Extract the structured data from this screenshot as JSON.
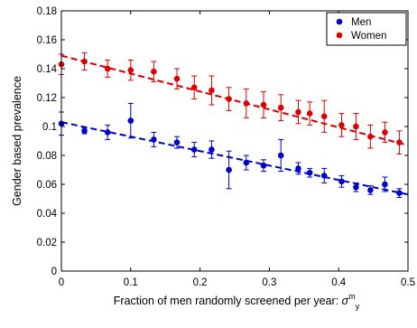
{
  "chart_data": {
    "type": "scatter",
    "title": "",
    "xlabel": {
      "text": "Fraction of men randomly screened per year: ",
      "symbol": "σ",
      "symbol_sup": "m",
      "symbol_sub": "y"
    },
    "ylabel": "Gender based prevalence",
    "xlim": [
      0,
      0.5
    ],
    "ylim": [
      0,
      0.18
    ],
    "x_ticks": [
      "0",
      "0.1",
      "0.2",
      "0.3",
      "0.4",
      "0.5"
    ],
    "y_ticks": [
      "0",
      "0.02",
      "0.04",
      "0.06",
      "0.08",
      "0.1",
      "0.12",
      "0.14",
      "0.16",
      "0.18"
    ],
    "grid": false,
    "legend_position": "top-right",
    "series": [
      {
        "name": "Men",
        "color": "#0000cc",
        "marker": "circle",
        "x": [
          0,
          0.0333,
          0.0667,
          0.1,
          0.1333,
          0.1667,
          0.1917,
          0.2167,
          0.2417,
          0.2667,
          0.2917,
          0.3167,
          0.3417,
          0.3583,
          0.3792,
          0.4042,
          0.425,
          0.4458,
          0.4667,
          0.4875
        ],
        "y": [
          0.102,
          0.097,
          0.096,
          0.104,
          0.091,
          0.089,
          0.084,
          0.084,
          0.07,
          0.075,
          0.073,
          0.08,
          0.071,
          0.068,
          0.066,
          0.062,
          0.058,
          0.056,
          0.06,
          0.054
        ],
        "y_err": [
          0.008,
          0.002,
          0.005,
          0.012,
          0.005,
          0.004,
          0.005,
          0.006,
          0.013,
          0.005,
          0.004,
          0.011,
          0.004,
          0.003,
          0.005,
          0.004,
          0.003,
          0.003,
          0.005,
          0.003
        ]
      },
      {
        "name": "Women",
        "color": "#dd0000",
        "marker": "circle",
        "x": [
          0,
          0.0333,
          0.0667,
          0.1,
          0.1333,
          0.1667,
          0.1917,
          0.2167,
          0.2417,
          0.2667,
          0.2917,
          0.3167,
          0.3417,
          0.3583,
          0.3792,
          0.4042,
          0.425,
          0.4458,
          0.4667,
          0.4875
        ],
        "y": [
          0.143,
          0.145,
          0.14,
          0.139,
          0.138,
          0.133,
          0.127,
          0.125,
          0.119,
          0.116,
          0.115,
          0.113,
          0.11,
          0.109,
          0.107,
          0.101,
          0.1,
          0.093,
          0.096,
          0.089
        ],
        "y_err": [
          0.007,
          0.006,
          0.006,
          0.007,
          0.007,
          0.007,
          0.008,
          0.01,
          0.008,
          0.01,
          0.009,
          0.009,
          0.008,
          0.008,
          0.011,
          0.008,
          0.009,
          0.008,
          0.007,
          0.008
        ]
      }
    ],
    "fit_lines": [
      {
        "series": "Men",
        "color": "#0000cc",
        "style": "dashed",
        "x": [
          0,
          0.5
        ],
        "y": [
          0.103,
          0.053
        ]
      },
      {
        "series": "Women",
        "color": "#dd0000",
        "style": "dashed",
        "x": [
          0,
          0.5
        ],
        "y": [
          0.149,
          0.087
        ]
      }
    ]
  }
}
